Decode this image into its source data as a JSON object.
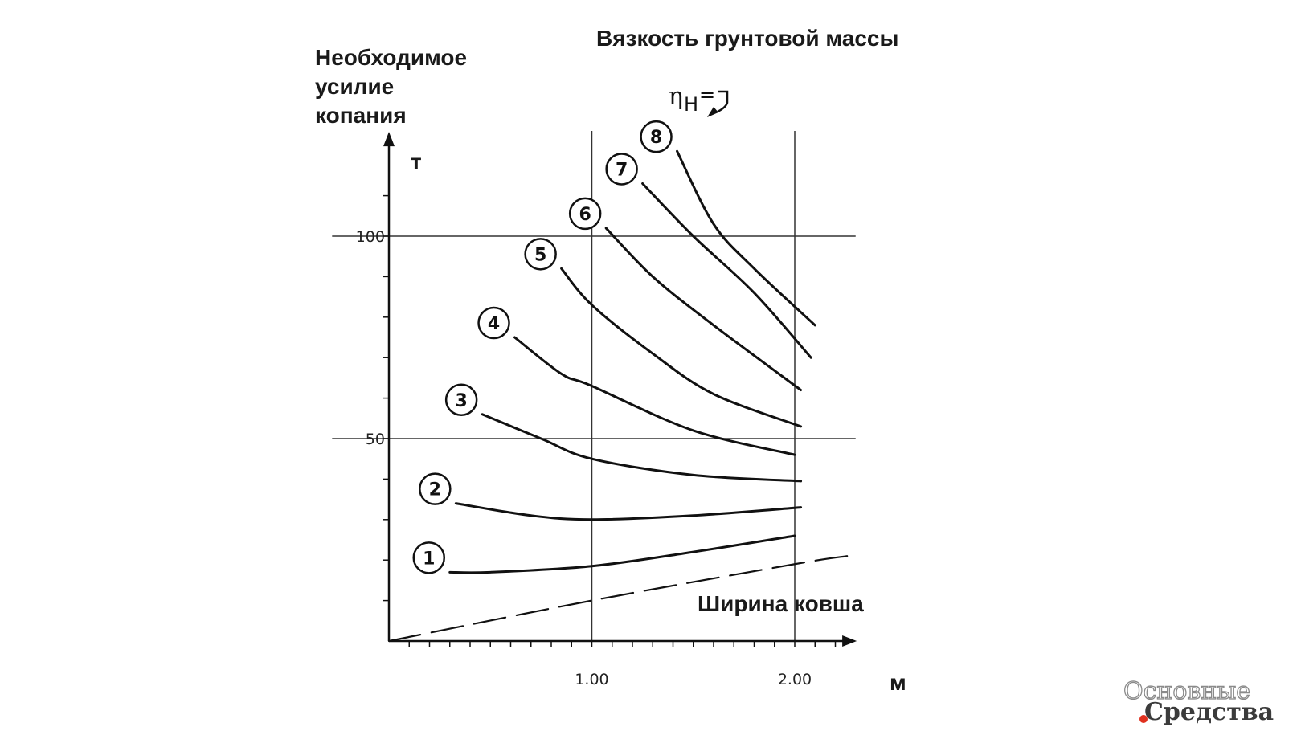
{
  "labels": {
    "title": "Вязкость грунтовой массы",
    "ylabel_lines": [
      "Необходимое",
      "усилие",
      "копания"
    ],
    "y_unit": "т",
    "xlabel": "Ширина ковша",
    "x_unit": "м",
    "eta_symbol": "η",
    "eta_subscript": "H",
    "eta_suffix": "="
  },
  "logo": {
    "line1": "Основные",
    "line2": "Средства"
  },
  "colors": {
    "ink": "#111111",
    "grid": "#333333",
    "logo_dot": "#e0301e"
  },
  "chart_data": {
    "type": "line",
    "xlim": [
      0,
      2.3
    ],
    "ylim": [
      0,
      120
    ],
    "x_ticks": [
      1.0,
      2.0
    ],
    "x_tick_labels": [
      "1.00",
      "2.00"
    ],
    "y_ticks": [
      50,
      100
    ],
    "y_tick_labels": [
      "50",
      "100"
    ],
    "grid": true,
    "series": [
      {
        "name": "1",
        "points": [
          [
            0.3,
            17
          ],
          [
            0.5,
            17
          ],
          [
            1.0,
            18.5
          ],
          [
            1.5,
            22
          ],
          [
            2.0,
            26
          ]
        ]
      },
      {
        "name": "2",
        "points": [
          [
            0.33,
            34
          ],
          [
            0.7,
            31
          ],
          [
            1.0,
            30
          ],
          [
            1.5,
            31
          ],
          [
            2.03,
            33
          ]
        ]
      },
      {
        "name": "3",
        "points": [
          [
            0.46,
            56
          ],
          [
            0.75,
            50
          ],
          [
            1.0,
            45
          ],
          [
            1.5,
            41
          ],
          [
            2.03,
            39.5
          ]
        ]
      },
      {
        "name": "4",
        "points": [
          [
            0.62,
            75
          ],
          [
            0.85,
            66
          ],
          [
            1.0,
            63
          ],
          [
            1.5,
            52
          ],
          [
            2.0,
            46
          ]
        ]
      },
      {
        "name": "5",
        "points": [
          [
            0.85,
            92
          ],
          [
            1.0,
            83
          ],
          [
            1.3,
            71
          ],
          [
            1.6,
            61
          ],
          [
            2.03,
            53
          ]
        ]
      },
      {
        "name": "6",
        "points": [
          [
            1.07,
            102
          ],
          [
            1.3,
            90
          ],
          [
            1.6,
            78
          ],
          [
            2.03,
            62
          ]
        ]
      },
      {
        "name": "7",
        "points": [
          [
            1.25,
            113
          ],
          [
            1.5,
            100
          ],
          [
            1.8,
            86
          ],
          [
            2.08,
            70
          ]
        ]
      },
      {
        "name": "8",
        "points": [
          [
            1.42,
            121
          ],
          [
            1.6,
            103
          ],
          [
            1.8,
            92
          ],
          [
            2.1,
            78
          ]
        ]
      },
      {
        "name": "",
        "style": "dashed",
        "points": [
          [
            0,
            0
          ],
          [
            1.0,
            10
          ],
          [
            2.0,
            19
          ],
          [
            2.26,
            21
          ]
        ]
      }
    ]
  }
}
